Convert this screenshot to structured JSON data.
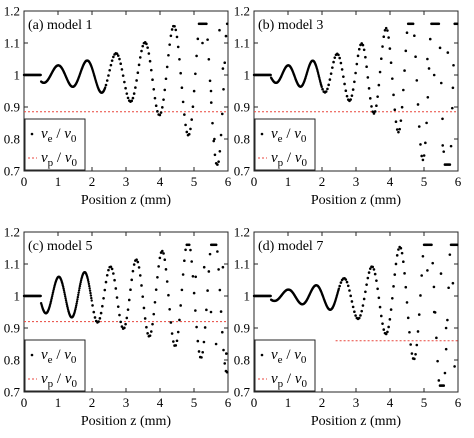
{
  "chart_data": [
    {
      "type": "scatter",
      "title": "(a) model 1",
      "xlabel": "Position z (mm)",
      "xlim": [
        0,
        6
      ],
      "ylim": [
        0.7,
        1.2
      ],
      "xticks": [
        0,
        1,
        2,
        3,
        4,
        5,
        6
      ],
      "yticks": [
        0.7,
        0.8,
        0.9,
        1,
        1.1,
        1.2
      ],
      "ytick_labels": [
        "0.7",
        "0.8",
        "0.9",
        "1",
        "1.1",
        "1.2"
      ],
      "legend": {
        "placement": "bottom-left",
        "entries": [
          {
            "main": "v",
            "sub": "e",
            "den": "v",
            "den_sub": "0"
          },
          {
            "main": "v",
            "sub": "p",
            "den": "v",
            "den_sub": "0"
          }
        ]
      },
      "phase_velocity": 0.885,
      "fold_start": 2.4,
      "wave": {
        "amplitude": 0.03,
        "growth": 0.48,
        "period": 0.85,
        "peak1": 1.0,
        "shift": 0.03
      },
      "scatter_points": [
        [
          5.25,
          1.1
        ],
        [
          5.5,
          0.95
        ],
        [
          5.6,
          0.8
        ],
        [
          5.75,
          1.14
        ],
        [
          5.85,
          1.02
        ]
      ],
      "marker_color": "#000000",
      "phase_color": "#e8463c"
    },
    {
      "type": "scatter",
      "title": "(b) model 3",
      "xlabel": "Position z (mm)",
      "xlim": [
        0,
        6
      ],
      "ylim": [
        0.7,
        1.2
      ],
      "xticks": [
        0,
        1,
        2,
        3,
        4,
        5,
        6
      ],
      "yticks": [
        0.7,
        0.8,
        0.9,
        1,
        1.1,
        1.2
      ],
      "ytick_labels": [
        "0.7",
        "0.8",
        "0.9",
        "1",
        "1.1",
        "1.2"
      ],
      "legend": {
        "placement": "bottom-left",
        "entries": [
          {
            "main": "v",
            "sub": "e",
            "den": "v",
            "den_sub": "0"
          },
          {
            "main": "v",
            "sub": "p",
            "den": "v",
            "den_sub": "0"
          }
        ]
      },
      "phase_velocity": 0.885,
      "fold_start": 2.0,
      "wave": {
        "amplitude": 0.03,
        "growth": 0.55,
        "period": 0.72,
        "peak1": 1.0,
        "shift": 0.025
      },
      "scatter_points": [
        [
          5.1,
          1.05
        ],
        [
          5.3,
          1.0
        ],
        [
          5.55,
          0.78
        ],
        [
          5.7,
          1.07
        ],
        [
          5.85,
          0.96
        ]
      ],
      "marker_color": "#000000",
      "phase_color": "#e8463c"
    },
    {
      "type": "scatter",
      "title": "(c) model 5",
      "xlabel": "Position z (mm)",
      "xlim": [
        0,
        6
      ],
      "ylim": [
        0.7,
        1.2
      ],
      "xticks": [
        0,
        1,
        2,
        3,
        4,
        5,
        6
      ],
      "yticks": [
        0.7,
        0.8,
        0.9,
        1,
        1.1,
        1.2
      ],
      "ytick_labels": [
        "0.7",
        "0.8",
        "0.9",
        "1",
        "1.1",
        "1.2"
      ],
      "legend": {
        "placement": "bottom-left",
        "entries": [
          {
            "main": "v",
            "sub": "e",
            "den": "v",
            "den_sub": "0"
          },
          {
            "main": "v",
            "sub": "p",
            "den": "v",
            "den_sub": "0"
          }
        ]
      },
      "phase_velocity": 0.92,
      "fold_start": 2.0,
      "wave": {
        "amplitude": 0.06,
        "growth": 0.28,
        "period": 0.76,
        "peak1": 1.02,
        "shift": 0.02
      },
      "scatter_points": [
        [
          5.05,
          1.06
        ],
        [
          5.3,
          1.09
        ],
        [
          5.5,
          0.95
        ],
        [
          5.65,
          0.85
        ],
        [
          5.85,
          1.09
        ],
        [
          5.95,
          0.82
        ]
      ],
      "marker_color": "#000000",
      "phase_color": "#e8463c"
    },
    {
      "type": "scatter",
      "title": "(d) model 7",
      "xlabel": "Position z (mm)",
      "xlim": [
        0,
        6
      ],
      "ylim": [
        0.7,
        1.2
      ],
      "xticks": [
        0,
        1,
        2,
        3,
        4,
        5,
        6
      ],
      "yticks": [
        0.7,
        0.8,
        0.9,
        1,
        1.1,
        1.2
      ],
      "ytick_labels": [
        "0.7",
        "0.8",
        "0.9",
        "1",
        "1.1",
        "1.2"
      ],
      "legend": {
        "placement": "bottom-left",
        "entries": [
          {
            "main": "v",
            "sub": "e",
            "den": "v",
            "den_sub": "0"
          },
          {
            "main": "v",
            "sub": "p",
            "den": "v",
            "den_sub": "0"
          }
        ]
      },
      "phase_velocity": 0.86,
      "phase_line_start": 2.4,
      "fold_start": 2.5,
      "wave": {
        "amplitude": 0.02,
        "growth": 0.62,
        "period": 0.82,
        "peak1": 1.0,
        "shift": 0.035
      },
      "scatter_points": [
        [
          5.1,
          1.08
        ],
        [
          5.3,
          0.95
        ],
        [
          5.5,
          1.07
        ],
        [
          5.65,
          0.9
        ],
        [
          5.85,
          1.04
        ],
        [
          5.9,
          0.78
        ]
      ],
      "marker_color": "#000000",
      "phase_color": "#e8463c"
    }
  ]
}
